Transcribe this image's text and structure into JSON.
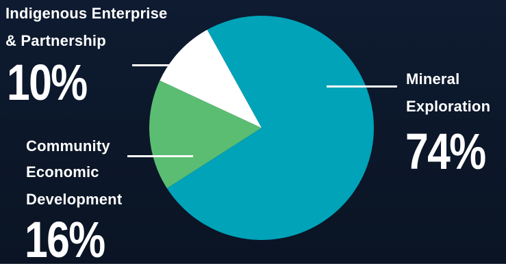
{
  "colors": {
    "background_top": "#0d1a2e",
    "background_bottom": "#0a1322",
    "mineral": "#00a3b8",
    "community": "#5bbd72",
    "indigenous": "#ffffff",
    "text": "#ffffff"
  },
  "chart_data": {
    "type": "pie",
    "title": "",
    "slices": [
      {
        "label_lines": [
          "Mineral",
          "Exploration"
        ],
        "value": 74,
        "display": "74%",
        "color": "#00a3b8"
      },
      {
        "label_lines": [
          "Community",
          "Economic",
          "Development"
        ],
        "value": 16,
        "display": "16%",
        "color": "#5bbd72"
      },
      {
        "label_lines": [
          "Indigenous Enterprise",
          "& Partnership"
        ],
        "value": 10,
        "display": "10%",
        "color": "#ffffff"
      }
    ]
  }
}
